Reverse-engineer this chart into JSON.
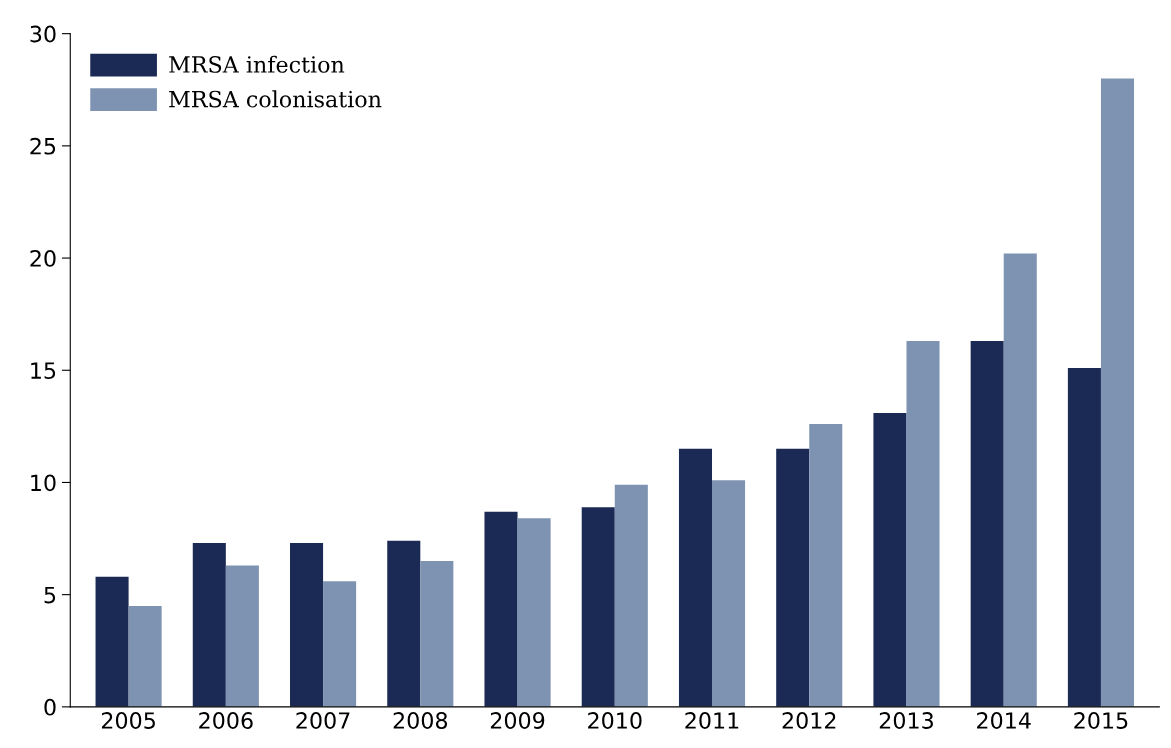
{
  "chart_data": {
    "type": "bar",
    "categories": [
      "2005",
      "2006",
      "2007",
      "2008",
      "2009",
      "2010",
      "2011",
      "2012",
      "2013",
      "2014",
      "2015"
    ],
    "series": [
      {
        "name": "MRSA infection",
        "color": "#1b2a55",
        "values": [
          5.8,
          7.3,
          7.3,
          7.4,
          8.7,
          8.9,
          11.5,
          11.5,
          13.1,
          16.3,
          15.1
        ]
      },
      {
        "name": "MRSA colonisation",
        "color": "#7e93b1",
        "values": [
          4.5,
          6.3,
          5.6,
          6.5,
          8.4,
          9.9,
          10.1,
          12.6,
          16.3,
          20.2,
          28.0
        ]
      }
    ],
    "ylim": [
      0,
      30
    ],
    "yticks": [
      0,
      5,
      10,
      15,
      20,
      25,
      30
    ],
    "grid": false,
    "legend": "top left"
  }
}
